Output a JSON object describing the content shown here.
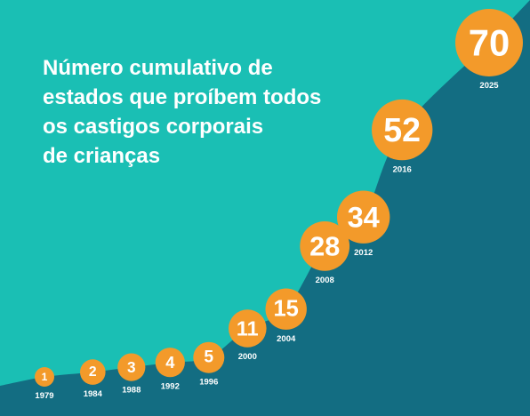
{
  "chart_data": {
    "type": "area",
    "title_lines": [
      "Número cumulativo de",
      "estados que proíbem todos",
      "os castigos corporais",
      "de crianças"
    ],
    "x": [
      1979,
      1984,
      1988,
      1992,
      1996,
      2000,
      2004,
      2008,
      2012,
      2016,
      2025
    ],
    "values": [
      1,
      2,
      3,
      4,
      5,
      11,
      15,
      28,
      34,
      52,
      70
    ],
    "year_labels": [
      "1979",
      "1984",
      "1988",
      "1992",
      "1996",
      "2000",
      "2004",
      "2008",
      "2012",
      "2016",
      "2025"
    ],
    "value_labels": [
      "1",
      "2",
      "3",
      "4",
      "5",
      "11",
      "15",
      "28",
      "34",
      "52",
      "70"
    ],
    "xlabel": "",
    "ylabel": "",
    "grid": false,
    "legend": "none"
  },
  "colors": {
    "background": "#1abfb4",
    "area": "#136d82",
    "marker": "#f39a2a",
    "marker_text": "#ffffff",
    "year_text": "#ffffff",
    "title_text": "#ffffff"
  }
}
